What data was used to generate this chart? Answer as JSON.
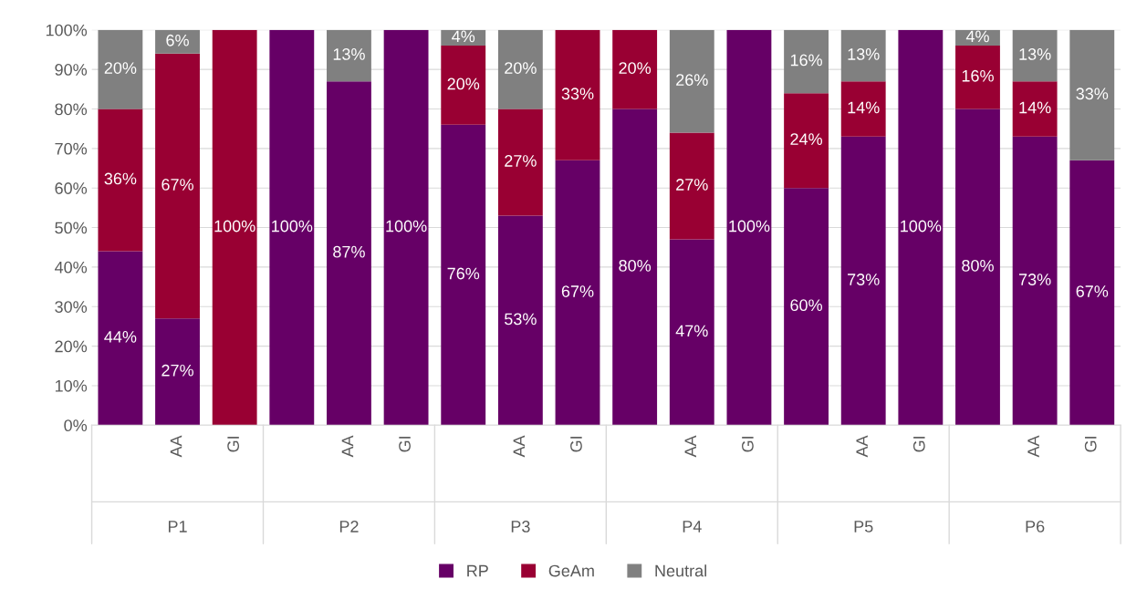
{
  "chart_data": {
    "type": "bar",
    "stacked": true,
    "categories": [
      null,
      "AA",
      "GI",
      null,
      "AA",
      "GI",
      null,
      "AA",
      "GI",
      null,
      "AA",
      "GI",
      null,
      "AA",
      "GI",
      null,
      "AA",
      "GI"
    ],
    "annotations": [
      "P1",
      "P2",
      "P3",
      "P4",
      "P5",
      "P6"
    ],
    "series": [
      {
        "name": "RP",
        "color": "#660066",
        "values": [
          44,
          27,
          0,
          100,
          87,
          100,
          76,
          53,
          67,
          80,
          47,
          100,
          60,
          73,
          100,
          80,
          73,
          67
        ],
        "value_labels": [
          "44%",
          "27%",
          null,
          "100%",
          "87%",
          "100%",
          "76%",
          "53%",
          "67%",
          "80%",
          "47%",
          "100%",
          "60%",
          "73%",
          "100%",
          "80%",
          "73%",
          "67%"
        ]
      },
      {
        "name": "GeAm",
        "color": "#990033",
        "values": [
          36,
          67,
          100,
          0,
          0,
          0,
          20,
          27,
          33,
          20,
          27,
          0,
          24,
          14,
          0,
          16,
          14,
          0
        ],
        "value_labels": [
          "36%",
          "67%",
          "100%",
          null,
          null,
          null,
          "20%",
          "27%",
          "33%",
          "20%",
          "27%",
          null,
          "24%",
          "14%",
          null,
          "16%",
          "14%",
          null
        ]
      },
      {
        "name": "Neutral",
        "color": "#808080",
        "values": [
          20,
          6,
          0,
          0,
          13,
          0,
          4,
          20,
          0,
          0,
          26,
          0,
          16,
          13,
          0,
          4,
          13,
          33
        ],
        "value_labels": [
          "20%",
          "6%",
          null,
          null,
          "13%",
          null,
          "4%",
          "20%",
          null,
          null,
          "26%",
          null,
          "16%",
          "13%",
          null,
          "4%",
          "13%",
          "33%"
        ]
      }
    ],
    "ylim": [
      0,
      100
    ],
    "yticks": [
      {
        "value": 0,
        "label": "0%"
      },
      {
        "value": 10,
        "label": "10%"
      },
      {
        "value": 20,
        "label": "20%"
      },
      {
        "value": 30,
        "label": "30%"
      },
      {
        "value": 40,
        "label": "40%"
      },
      {
        "value": 50,
        "label": "50%"
      },
      {
        "value": 60,
        "label": "60%"
      },
      {
        "value": 70,
        "label": "70%"
      },
      {
        "value": 80,
        "label": "80%"
      },
      {
        "value": 90,
        "label": "90%"
      },
      {
        "value": 100,
        "label": "100%"
      }
    ],
    "grid": "y",
    "legend": "bottom"
  }
}
